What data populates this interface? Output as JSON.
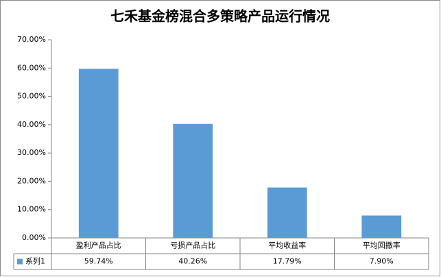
{
  "chart_data": {
    "type": "bar",
    "title": "七禾基金榜混合多策略产品运行情况",
    "categories": [
      "盈利产品占比",
      "亏损产品占比",
      "平均收益率",
      "平均回撤率"
    ],
    "series": [
      {
        "name": "系列1",
        "color": "#5b9bd5",
        "values": [
          59.74,
          40.26,
          17.79,
          7.9
        ],
        "value_labels": [
          "59.74%",
          "40.26%",
          "17.79%",
          "7.90%"
        ]
      }
    ],
    "ylim": [
      0,
      70
    ],
    "yticks": [
      {
        "value": 0,
        "label": "0.00%"
      },
      {
        "value": 10,
        "label": "10.00%"
      },
      {
        "value": 20,
        "label": "20.00%"
      },
      {
        "value": 30,
        "label": "30.00%"
      },
      {
        "value": 40,
        "label": "40.00%"
      },
      {
        "value": 50,
        "label": "50.00%"
      },
      {
        "value": 60,
        "label": "60.00%"
      },
      {
        "value": 70,
        "label": "70.00%"
      }
    ],
    "grid": false
  }
}
